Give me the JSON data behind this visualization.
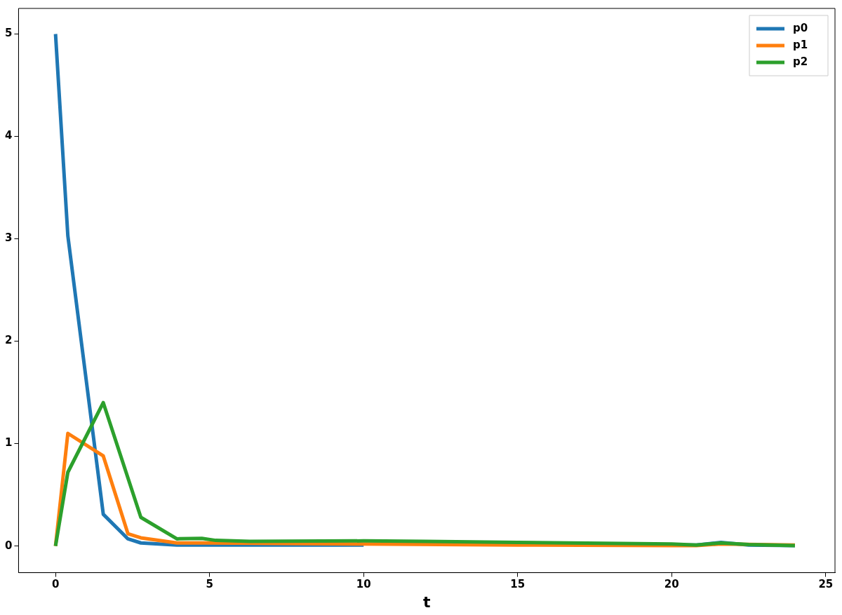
{
  "chart_data": {
    "type": "line",
    "xlabel": "t",
    "xlim": [
      -1.2,
      25.3
    ],
    "xticks": [
      0,
      5,
      10,
      15,
      20,
      25
    ],
    "ylim": [
      -0.26,
      5.25
    ],
    "yticks": [
      0,
      1,
      2,
      3,
      4,
      5
    ],
    "grid": false,
    "legend": "top right",
    "marker": "none",
    "line_style": "solid",
    "series": [
      {
        "name": "p0",
        "color": "#1f77b4",
        "x": [
          0,
          0.4,
          1.55,
          2.35,
          2.77,
          3.94,
          5,
          10,
          15,
          20,
          20.8,
          21.6,
          22.5,
          24
        ],
        "values": [
          5,
          3.03,
          0.31,
          0.07,
          0.03,
          0.01,
          0.01,
          0.01,
          null,
          0.01,
          0.01,
          0.035,
          0.01,
          0.005
        ]
      },
      {
        "name": "p1",
        "color": "#ff7f0e",
        "x": [
          0,
          0.4,
          1.55,
          2.35,
          2.77,
          3.94,
          5,
          10,
          15,
          20,
          20.8,
          21.6,
          24
        ],
        "values": [
          0,
          1.1,
          0.88,
          0.12,
          0.08,
          0.03,
          0.03,
          0.02,
          0.01,
          0.005,
          0.005,
          0.02,
          0.01
        ]
      },
      {
        "name": "p2",
        "color": "#2ca02c",
        "x": [
          0,
          0.4,
          1.55,
          2.77,
          3.94,
          4.75,
          5.2,
          6.3,
          10,
          12,
          15,
          20,
          20.8,
          21.6,
          22.5,
          24
        ],
        "values": [
          0,
          0.72,
          1.4,
          0.28,
          0.07,
          0.075,
          0.055,
          0.045,
          0.05,
          0.045,
          0.035,
          0.02,
          0.01,
          0.03,
          0.015,
          0.005
        ]
      }
    ]
  }
}
